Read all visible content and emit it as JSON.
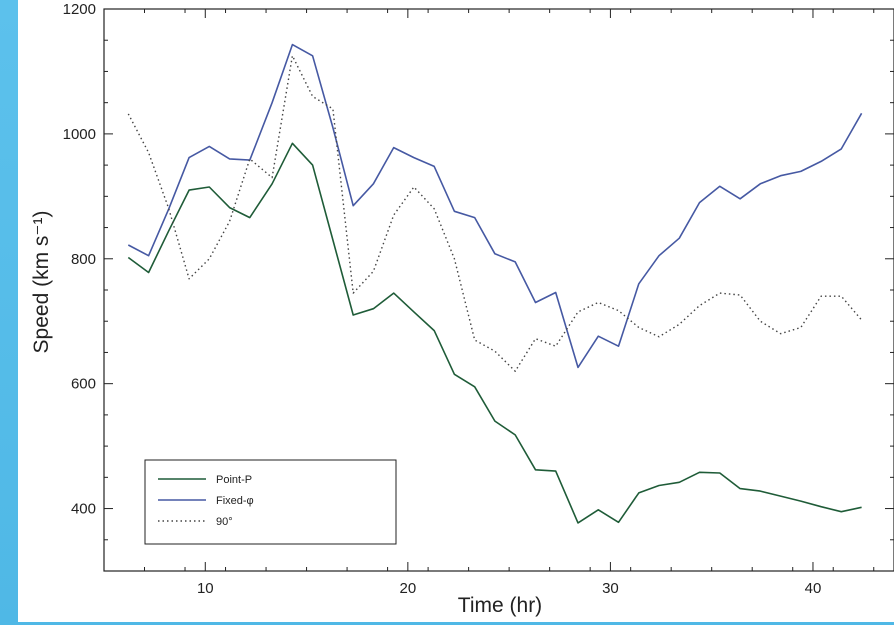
{
  "chart_data": {
    "type": "line",
    "xlabel": "Time (hr)",
    "ylabel": "Speed (km s⁻¹)",
    "xlim": [
      5,
      44
    ],
    "ylim": [
      300,
      1200
    ],
    "x_ticks": [
      10,
      20,
      30,
      40
    ],
    "y_ticks": [
      400,
      600,
      800,
      1000,
      1200
    ],
    "grid": false,
    "legend_position": "bottom-left",
    "series": [
      {
        "name": "Point-P",
        "color": "#1f5c38",
        "style": "solid",
        "x": [
          6.2,
          7.2,
          8.2,
          9.2,
          10.2,
          11.2,
          12.2,
          13.3,
          14.3,
          15.3,
          16.3,
          17.3,
          18.3,
          19.3,
          20.3,
          21.3,
          22.3,
          23.3,
          24.3,
          25.3,
          26.3,
          27.3,
          28.4,
          29.4,
          30.4,
          31.4,
          32.4,
          33.4,
          34.4,
          35.4,
          36.4,
          37.4,
          38.4,
          39.4,
          40.4,
          41.4,
          42.4
        ],
        "values": [
          802,
          778,
          845,
          910,
          915,
          882,
          866,
          920,
          985,
          950,
          830,
          710,
          720,
          745,
          715,
          685,
          615,
          595,
          540,
          518,
          462,
          460,
          377,
          398,
          378,
          425,
          437,
          442,
          458,
          457,
          432,
          428,
          420,
          412,
          403,
          395,
          402
        ]
      },
      {
        "name": "Fixed-φ",
        "color": "#4659a3",
        "style": "solid",
        "x": [
          6.2,
          7.2,
          8.2,
          9.2,
          10.2,
          11.2,
          12.2,
          13.3,
          14.3,
          15.3,
          16.3,
          17.3,
          18.3,
          19.3,
          20.3,
          21.3,
          22.3,
          23.3,
          24.3,
          25.3,
          26.3,
          27.3,
          28.4,
          29.4,
          30.4,
          31.4,
          32.4,
          33.4,
          34.4,
          35.4,
          36.4,
          37.4,
          38.4,
          39.4,
          40.4,
          41.4,
          42.4
        ],
        "values": [
          822,
          805,
          880,
          962,
          980,
          960,
          958,
          1050,
          1143,
          1125,
          1010,
          885,
          920,
          978,
          962,
          948,
          876,
          866,
          808,
          795,
          730,
          746,
          626,
          676,
          660,
          760,
          805,
          833,
          890,
          916,
          896,
          920,
          933,
          940,
          956,
          976,
          1033
        ]
      },
      {
        "name": "90°",
        "color": "#444444",
        "style": "dotted",
        "x": [
          6.2,
          7.2,
          8.2,
          9.2,
          10.2,
          11.2,
          12.2,
          13.3,
          14.3,
          15.3,
          16.3,
          17.3,
          18.3,
          19.3,
          20.3,
          21.3,
          22.3,
          23.3,
          24.3,
          25.3,
          26.3,
          27.3,
          28.4,
          29.4,
          30.4,
          31.4,
          32.4,
          33.4,
          34.4,
          35.4,
          36.4,
          37.4,
          38.4,
          39.4,
          40.4,
          41.4,
          42.4
        ],
        "values": [
          1032,
          970,
          880,
          768,
          800,
          860,
          960,
          930,
          1125,
          1060,
          1040,
          745,
          780,
          870,
          915,
          880,
          800,
          670,
          652,
          620,
          672,
          660,
          715,
          730,
          717,
          690,
          675,
          695,
          725,
          745,
          742,
          700,
          680,
          690,
          740,
          740,
          702
        ]
      }
    ]
  }
}
